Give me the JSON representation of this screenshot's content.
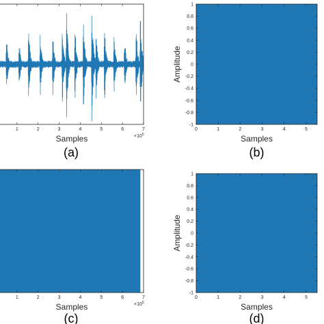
{
  "colors": {
    "signal": "#1f77b4",
    "axis": "#262626",
    "background": "#ffffff"
  },
  "chart_data": [
    {
      "panel": "a",
      "type": "line",
      "caption": "(a)",
      "xlabel": "Samples",
      "ylabel": "",
      "x_exponent_label": "×10",
      "x_exponent_power": "5",
      "xlim": [
        0,
        7
      ],
      "ylim": [
        -1,
        1
      ],
      "xticks": [
        "1",
        "2",
        "3",
        "4",
        "5",
        "6",
        "7"
      ],
      "yticks": [],
      "grid": false,
      "burst_positions_x1e5": [
        0.5,
        1.1,
        1.55,
        2.1,
        2.7,
        3.15,
        3.35,
        3.75,
        4.15,
        4.55,
        4.75,
        5.15,
        5.6,
        6.1,
        6.65,
        6.85
      ],
      "burst_amplitudes": [
        0.55,
        0.45,
        0.7,
        0.6,
        0.6,
        0.7,
        1.0,
        0.7,
        0.85,
        0.95,
        0.6,
        0.7,
        0.6,
        0.55,
        0.7,
        1.0
      ]
    },
    {
      "panel": "b",
      "type": "area",
      "caption": "(b)",
      "xlabel": "Samples",
      "ylabel": "Amplitude",
      "xlim": [
        0,
        5.5
      ],
      "ylim": [
        -1,
        1
      ],
      "xticks": [
        "0",
        "1",
        "2",
        "3",
        "4",
        "5"
      ],
      "yticks": [
        "1",
        "0.8",
        "0.6",
        "0.4",
        "0.2",
        "0",
        "-0.2",
        "-0.4",
        "-0.6",
        "-0.8",
        "-1"
      ],
      "fill_range": [
        -1,
        1
      ],
      "grid": false
    },
    {
      "panel": "c",
      "type": "area",
      "caption": "(c)",
      "xlabel": "Samples",
      "ylabel": "",
      "x_exponent_label": "×10",
      "x_exponent_power": "5",
      "xlim": [
        0,
        7
      ],
      "ylim": [
        -1,
        1
      ],
      "xticks": [
        "1",
        "2",
        "3",
        "4",
        "5",
        "6",
        "7"
      ],
      "yticks": [],
      "fill_range": [
        -1,
        1
      ],
      "fill_x_end": 6.85,
      "grid": false
    },
    {
      "panel": "d",
      "type": "area",
      "caption": "(d)",
      "xlabel": "Samples",
      "ylabel": "Amplitude",
      "xlim": [
        0,
        5.5
      ],
      "ylim": [
        -1,
        1
      ],
      "xticks": [
        "0",
        "1",
        "2",
        "3",
        "4",
        "5"
      ],
      "yticks": [
        "1",
        "0.8",
        "0.6",
        "0.4",
        "0.2",
        "0",
        "-0.2",
        "-0.4",
        "-0.6",
        "-0.8",
        "-1"
      ],
      "fill_range": [
        -1,
        1
      ],
      "grid": false
    }
  ]
}
